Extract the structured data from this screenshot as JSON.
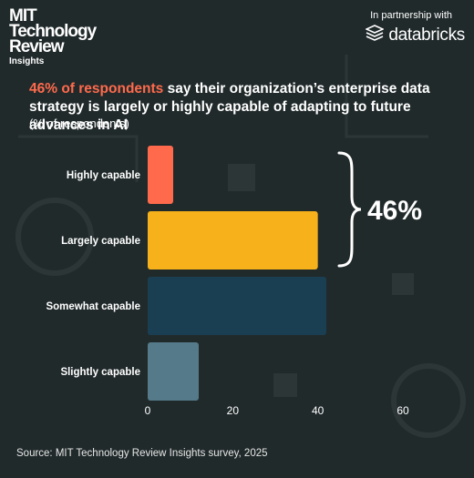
{
  "branding": {
    "logo_lines": [
      "MIT",
      "Technology",
      "Review"
    ],
    "logo_sub": "Insights",
    "partner_label": "In partnership with",
    "partner_name": "databricks",
    "partner_icon": "databricks-stack-icon"
  },
  "headline": {
    "highlight": "46% of respondents",
    "rest": " say their organization’s enterprise data strategy is largely or highly capable of adapting to future advances in AI"
  },
  "subtitle": "(% of respondents)",
  "callout": "46%",
  "source": "Source: MIT Technology Review Insights survey, 2025",
  "colors": {
    "background": "#212a2b",
    "highlight": "#ff6a4c",
    "bars": [
      "#ff6a4c",
      "#f7b21b",
      "#1b3f52",
      "#557a89"
    ]
  },
  "chart_data": {
    "type": "bar",
    "orientation": "horizontal",
    "categories": [
      "Highly capable",
      "Largely capable",
      "Somewhat capable",
      "Slightly capable"
    ],
    "values": [
      6,
      40,
      42,
      12
    ],
    "xlim": [
      0,
      60
    ],
    "xticks": [
      0,
      20,
      40,
      60
    ],
    "grid": false,
    "bracket": {
      "spans": [
        "Highly capable",
        "Largely capable"
      ],
      "label": "46%"
    }
  }
}
